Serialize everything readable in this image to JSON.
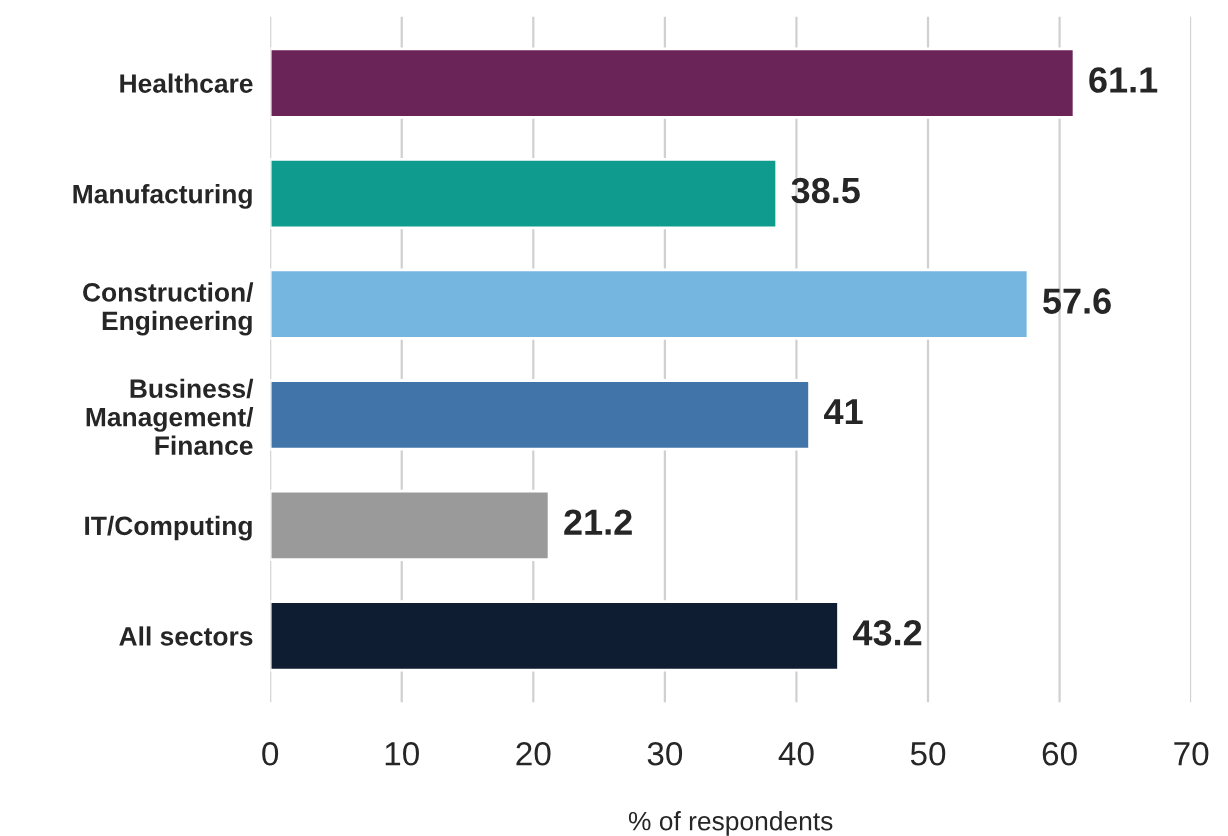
{
  "chart_data": {
    "type": "bar",
    "orientation": "horizontal",
    "xlabel": "% of respondents",
    "categories": [
      "Healthcare",
      "Manufacturing",
      "Construction/\nEngineering",
      "Business/\nManagement/\nFinance",
      "IT/Computing",
      "All sectors"
    ],
    "values": [
      61.1,
      38.5,
      57.6,
      41,
      21.2,
      43.2
    ],
    "colors": [
      "#6b2458",
      "#0f9b8e",
      "#74b6e0",
      "#4174a8",
      "#9a9a9a",
      "#0f1d33"
    ],
    "xlim": [
      0,
      70
    ],
    "xticks": [
      0,
      10,
      20,
      30,
      40,
      50,
      60,
      70
    ],
    "grid": "x",
    "data_labels": true
  }
}
